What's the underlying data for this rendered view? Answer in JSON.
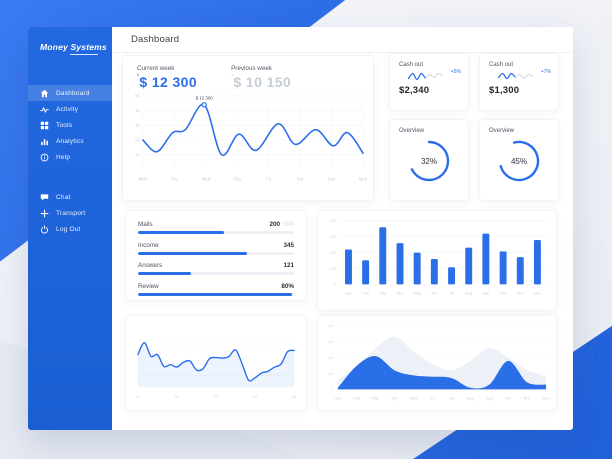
{
  "brand": {
    "logo_text": "Money Systems"
  },
  "header": {
    "title": "Dashboard"
  },
  "sidebar": {
    "items": [
      {
        "label": "Dashboard",
        "icon": "home-icon",
        "active": true
      },
      {
        "label": "Activity",
        "icon": "activity-icon",
        "active": false
      },
      {
        "label": "Tools",
        "icon": "grid-icon",
        "active": false
      },
      {
        "label": "Analytics",
        "icon": "analytics-icon",
        "active": false
      },
      {
        "label": "Help",
        "icon": "help-icon",
        "active": false
      }
    ],
    "secondary_items": [
      {
        "label": "Chat",
        "icon": "chat-icon",
        "active": false
      },
      {
        "label": "Transport",
        "icon": "plus-icon",
        "active": false
      },
      {
        "label": "Log Out",
        "icon": "power-icon",
        "active": false
      }
    ]
  },
  "summary": {
    "current": {
      "label": "Current week",
      "mark": "’",
      "value": "$ 12 300"
    },
    "previous": {
      "label": "Previous week",
      "mark": "’",
      "value": "$ 10 150"
    }
  },
  "cashout_cards": [
    {
      "label": "Cash out",
      "delta": "+5%",
      "value": "$2,340",
      "spark_values": [
        4,
        9,
        3,
        9,
        4,
        8,
        5,
        9,
        7
      ]
    },
    {
      "label": "Cash out",
      "delta": "+7%",
      "value": "$1,300",
      "spark_values": [
        5,
        9,
        4,
        9,
        5,
        8,
        4,
        8,
        6
      ]
    }
  ],
  "overview_cards": [
    {
      "label": "Overview",
      "percent": "32%"
    },
    {
      "label": "Overview",
      "percent": "45%"
    }
  ],
  "progress_list": {
    "rows": [
      {
        "label": "Mails",
        "value": "200",
        "percent": 55,
        "ghost": true
      },
      {
        "label": "Income",
        "value": "345",
        "percent": 70,
        "ghost": false
      },
      {
        "label": "Answers",
        "value": "121",
        "percent": 34,
        "ghost": false
      },
      {
        "label": "Review",
        "value": "80%",
        "percent": 99,
        "ghost": false
      }
    ]
  },
  "colors": {
    "accent": "#2b6fe8",
    "sidebar_top": "#2268e0",
    "sidebar_bottom": "#1a5ed2",
    "muted_text": "#9aa3b2",
    "faint_axis": "#c9cfd9",
    "area_ghost": "#edf0f6"
  },
  "chart_data": [
    {
      "id": "weekly-line",
      "type": "line",
      "x_labels": [
        "Mon",
        "Tue",
        "Wed",
        "Thu",
        "Fri",
        "Sat",
        "Sun",
        "Mon"
      ],
      "y_ticks": [
        10,
        20,
        30,
        40,
        50
      ],
      "ylim": [
        0,
        50
      ],
      "smooth": true,
      "points": [
        [
          0,
          20
        ],
        [
          0.45,
          12
        ],
        [
          0.95,
          25
        ],
        [
          1.35,
          27
        ],
        [
          1.95,
          44
        ],
        [
          2.5,
          10
        ],
        [
          3.05,
          24
        ],
        [
          3.6,
          13
        ],
        [
          4.3,
          31
        ],
        [
          4.85,
          17
        ],
        [
          5.5,
          27
        ],
        [
          6.05,
          16
        ],
        [
          6.5,
          25
        ],
        [
          7,
          11
        ]
      ],
      "annotation": {
        "text": "$ 12 300",
        "x": 1.95,
        "y": 44
      }
    },
    {
      "id": "monthly-bars",
      "type": "bar",
      "categories": [
        "Jan",
        "Feb",
        "Mar",
        "Apr",
        "May",
        "Jun",
        "Jul",
        "Aug",
        "Sep",
        "Oct",
        "Nov",
        "Dec"
      ],
      "values": [
        220,
        152,
        360,
        260,
        200,
        160,
        108,
        232,
        320,
        208,
        172,
        280
      ],
      "y_ticks": [
        0,
        100,
        200,
        300,
        400
      ],
      "ylim": [
        0,
        400
      ]
    },
    {
      "id": "trend-line",
      "type": "line",
      "x_labels": [
        "01",
        "02",
        "03",
        "04",
        "05"
      ],
      "values": [
        55,
        75,
        52,
        55,
        35,
        38,
        34,
        42,
        44,
        29,
        31,
        48,
        50,
        49,
        52,
        63,
        40,
        12,
        16,
        24,
        27,
        34,
        39,
        60,
        62
      ],
      "ylim": [
        0,
        100
      ],
      "area": true
    },
    {
      "id": "yearly-area",
      "type": "area",
      "categories": [
        "Jan",
        "Feb",
        "Mar",
        "Apr",
        "May",
        "Jun",
        "Jul",
        "Aug",
        "Sep",
        "Oct",
        "Nov",
        "Dec"
      ],
      "series": [
        {
          "name": "background",
          "values": [
            60,
            140,
            260,
            330,
            240,
            160,
            120,
            180,
            260,
            200,
            120,
            80
          ]
        },
        {
          "name": "primary",
          "values": [
            10,
            150,
            210,
            120,
            88,
            80,
            72,
            10,
            30,
            180,
            45,
            30
          ]
        }
      ],
      "y_ticks": [
        0,
        100,
        200,
        300,
        400
      ],
      "ylim": [
        0,
        400
      ]
    }
  ]
}
